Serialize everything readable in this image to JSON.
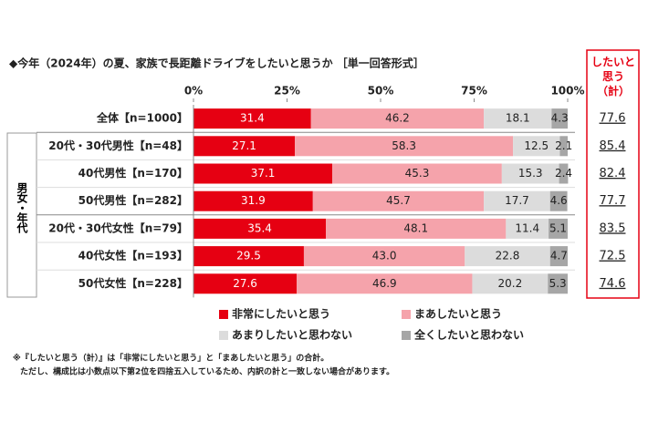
{
  "chart_data": {
    "type": "stacked-bar",
    "title": "◆今年（2024年）の夏、家族で長距離ドライブをしたいと思うか ［単一回答形式］",
    "categories": [
      "全体【n=1000】",
      "20代・30代男性【n=48】",
      "40代男性【n=170】",
      "50代男性【n=282】",
      "20代・30代女性【n=79】",
      "40代女性【n=193】",
      "50代女性【n=228】"
    ],
    "group_label": "男女・年代",
    "series": [
      {
        "name": "非常にしたいと思う",
        "color": "#e60012",
        "values": [
          31.4,
          27.1,
          37.1,
          31.9,
          35.4,
          29.5,
          27.6
        ],
        "value_labels": [
          "31.4",
          "27.1",
          "37.1",
          "31.9",
          "35.4",
          "29.5",
          "27.6"
        ]
      },
      {
        "name": "まあしたいと思う",
        "color": "#f5a3ab",
        "values": [
          46.2,
          58.3,
          45.3,
          45.7,
          48.1,
          43.0,
          46.9
        ],
        "value_labels": [
          "46.2",
          "58.3",
          "45.3",
          "45.7",
          "48.1",
          "43.0",
          "46.9"
        ]
      },
      {
        "name": "あまりしたいと思わない",
        "color": "#dcdcdc",
        "values": [
          18.1,
          12.5,
          15.3,
          17.7,
          11.4,
          22.8,
          20.2
        ],
        "value_labels": [
          "18.1",
          "12.5",
          "15.3",
          "17.7",
          "11.4",
          "22.8",
          "20.2"
        ]
      },
      {
        "name": "全くしたいと思わない",
        "color": "#a6a6a6",
        "values": [
          4.3,
          2.1,
          2.4,
          4.6,
          5.1,
          4.7,
          5.3
        ],
        "value_labels": [
          "4.3",
          "2.1",
          "2.4",
          "4.6",
          "5.1",
          "4.7",
          "5.3"
        ]
      }
    ],
    "xlim": [
      0,
      100
    ],
    "xticks": [
      {
        "value": 0,
        "label": "0%"
      },
      {
        "value": 25,
        "label": "25%"
      },
      {
        "value": 50,
        "label": "50%"
      },
      {
        "value": 75,
        "label": "75%"
      },
      {
        "value": 100,
        "label": "100%"
      }
    ],
    "total": {
      "title": "したいと思う（計）",
      "color": "#e60012",
      "values": [
        77.6,
        85.4,
        82.4,
        77.7,
        83.5,
        72.5,
        74.6
      ],
      "value_labels": [
        "77.6",
        "85.4",
        "82.4",
        "77.7",
        "83.5",
        "72.5",
        "74.6"
      ]
    },
    "notes": [
      "※『したいと思う（計）』は「非常にしたいと思う」と「まあしたいと思う」の合計。",
      "ただし、構成比は小数点以下第2位を四捨五入しているため、内訳の計と一致しない場合があります。"
    ]
  }
}
